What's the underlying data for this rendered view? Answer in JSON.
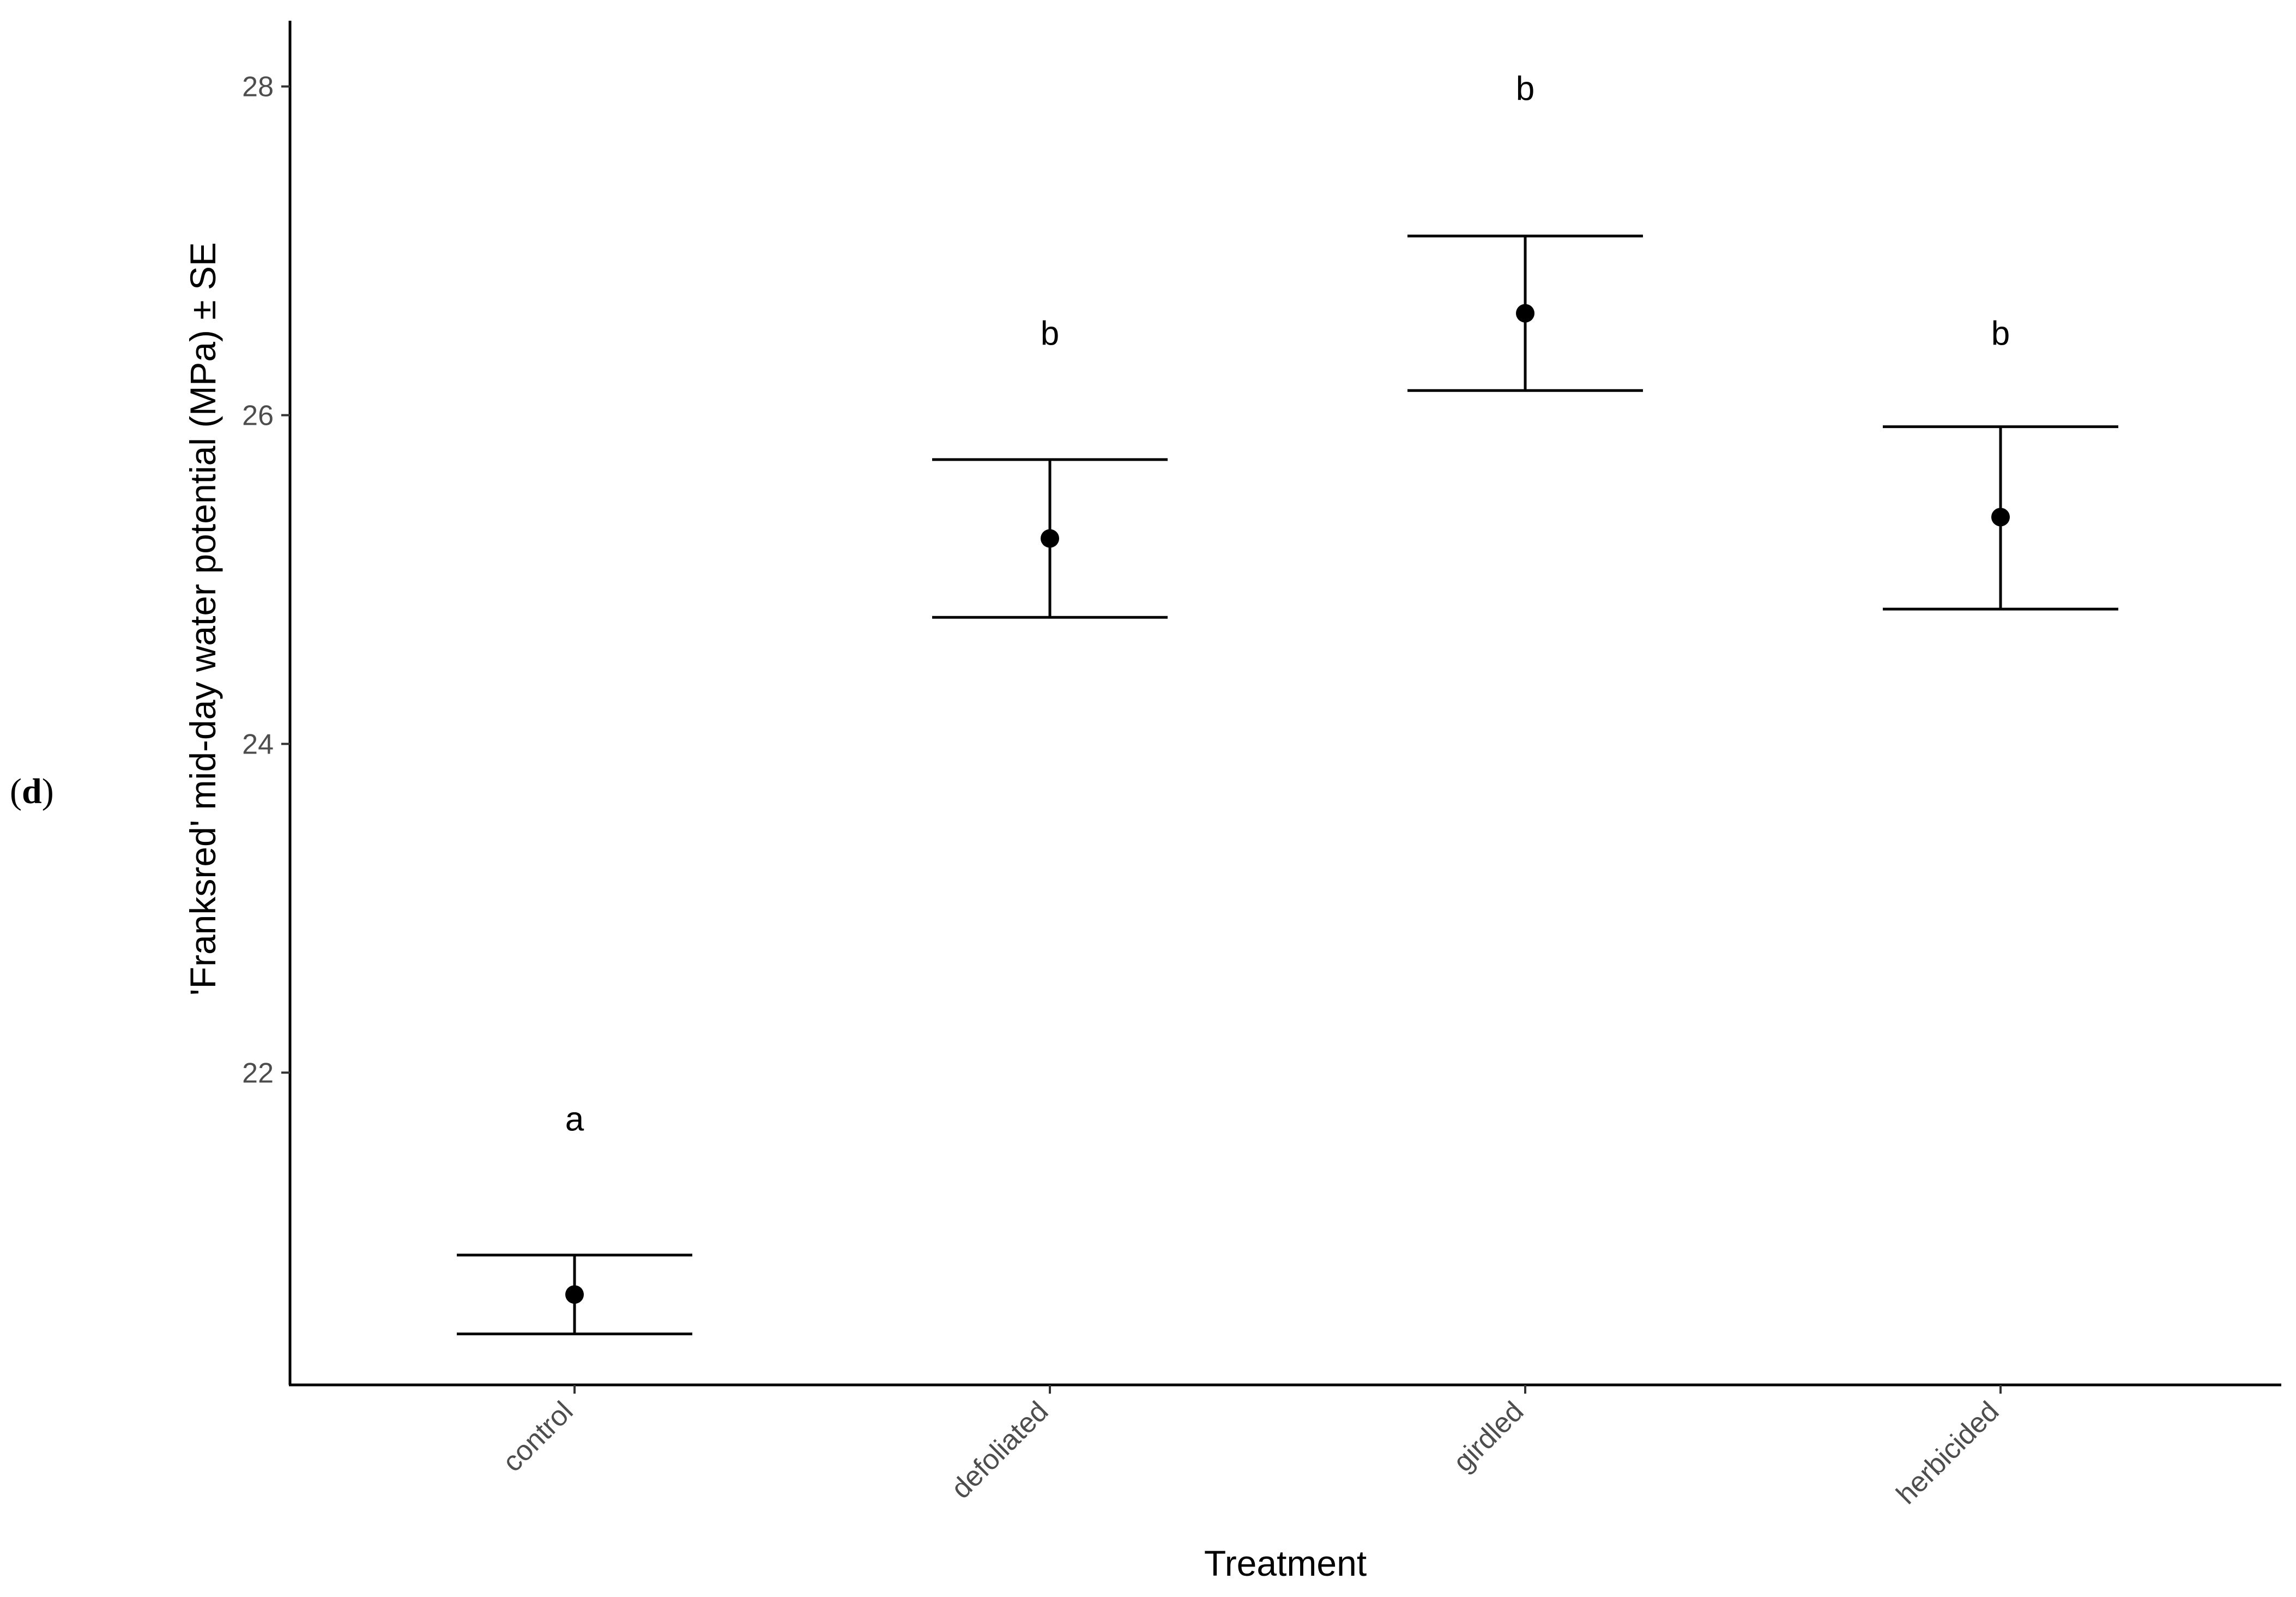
{
  "panel_label": {
    "open": "(",
    "letter": "d",
    "close": ")"
  },
  "chart_data": {
    "type": "scatter",
    "title": "",
    "xlabel": "Treatment",
    "ylabel": "'Franksred' mid-day water potential (MPa) ± SE",
    "categories": [
      "control",
      "defoliated",
      "girdled",
      "herbicided"
    ],
    "tick_labels_y": [
      "22",
      "24",
      "26",
      "28"
    ],
    "y_ticks": [
      22,
      24,
      26,
      28
    ],
    "ylim": [
      20.1,
      28.4
    ],
    "grid": false,
    "legend": "none",
    "series": [
      {
        "values": [
          20.65,
          25.25,
          26.62,
          25.38
        ],
        "se_lower": [
          20.41,
          24.77,
          26.15,
          24.82
        ],
        "se_upper": [
          20.89,
          25.73,
          27.09,
          25.93
        ],
        "significance_letters": [
          "a",
          "b",
          "b",
          "b"
        ]
      }
    ],
    "letter_y": [
      21.72,
      26.5,
      27.99,
      26.5
    ]
  }
}
